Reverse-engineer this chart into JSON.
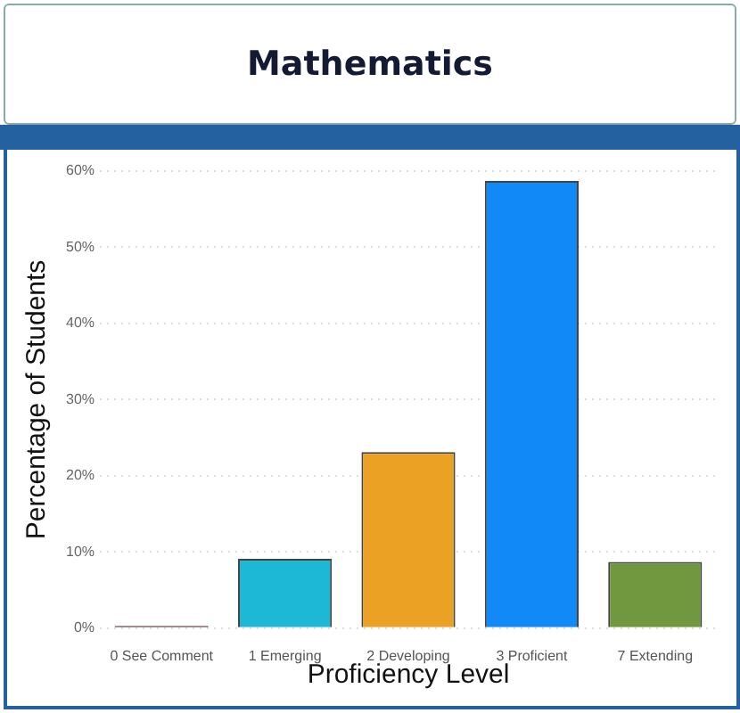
{
  "chart_data": {
    "type": "bar",
    "title": "Mathematics",
    "xlabel": "Proficiency Level",
    "ylabel": "Percentage of Students",
    "categories": [
      "0 See Comment",
      "1 Emerging",
      "2 Developing",
      "3 Proficient",
      "7 Extending"
    ],
    "values": [
      0.3,
      9.1,
      23.1,
      58.7,
      8.7
    ],
    "colors": [
      "#6b2a2a",
      "#1cb8d6",
      "#eba224",
      "#118af8",
      "#72983f"
    ],
    "ylim": [
      0,
      60
    ],
    "yticks": [
      {
        "value": 0,
        "label": "0%"
      },
      {
        "value": 10,
        "label": "10%"
      },
      {
        "value": 20,
        "label": "20%"
      },
      {
        "value": 30,
        "label": "30%"
      },
      {
        "value": 40,
        "label": "40%"
      },
      {
        "value": 50,
        "label": "50%"
      },
      {
        "value": 60,
        "label": "60%"
      }
    ],
    "grid": "y",
    "legend": false
  }
}
